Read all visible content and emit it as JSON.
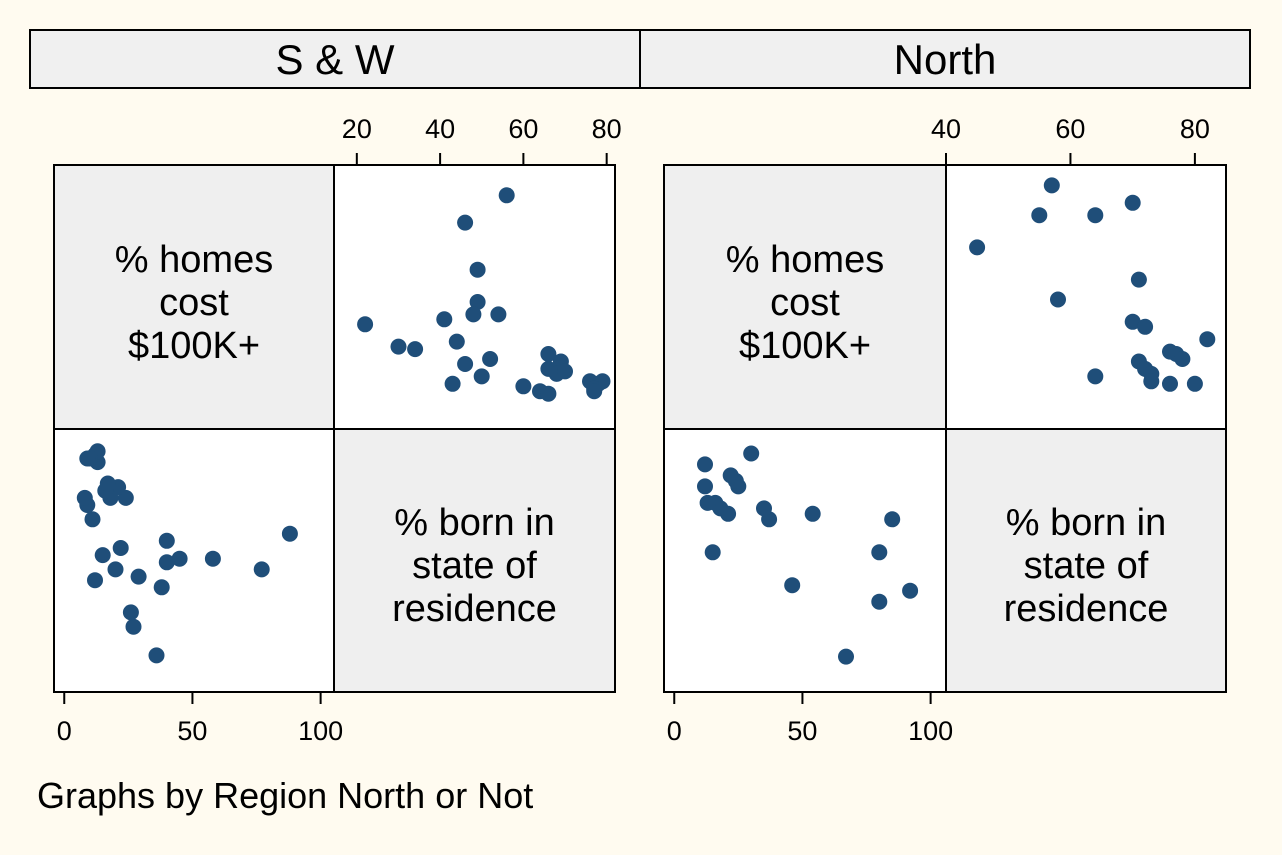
{
  "note": "Graphs by Region North or Not",
  "colors": {
    "marker": "#1f4e79",
    "background": "#fffbf0",
    "strip": "#f0f0f0",
    "diagonal": "#efefef"
  },
  "chart_data": [
    {
      "type": "scatter",
      "panel": "S & W",
      "variables": [
        {
          "key": "homes",
          "label_lines": [
            "% homes",
            "cost",
            "$100K+"
          ]
        },
        {
          "key": "born",
          "label_lines": [
            "% born in",
            "state of",
            "residence"
          ]
        }
      ],
      "top_axis": {
        "variable": "born",
        "range": [
          15,
          82
        ],
        "ticks": [
          20,
          40,
          60,
          80
        ]
      },
      "bottom_axis": {
        "variable": "homes",
        "range": [
          -4,
          106
        ],
        "ticks": [
          0,
          50,
          100
        ]
      },
      "homes_range": [
        -3,
        97
      ],
      "born_range": [
        14,
        83
      ],
      "points": [
        {
          "born": 56,
          "homes": 88
        },
        {
          "born": 46,
          "homes": 77
        },
        {
          "born": 49,
          "homes": 58
        },
        {
          "born": 49,
          "homes": 45
        },
        {
          "born": 48,
          "homes": 40
        },
        {
          "born": 54,
          "homes": 40
        },
        {
          "born": 22,
          "homes": 36
        },
        {
          "born": 41,
          "homes": 38
        },
        {
          "born": 44,
          "homes": 29
        },
        {
          "born": 30,
          "homes": 27
        },
        {
          "born": 34,
          "homes": 26
        },
        {
          "born": 52,
          "homes": 22
        },
        {
          "born": 46,
          "homes": 20
        },
        {
          "born": 66,
          "homes": 24
        },
        {
          "born": 69,
          "homes": 21
        },
        {
          "born": 66,
          "homes": 18
        },
        {
          "born": 68,
          "homes": 16
        },
        {
          "born": 70,
          "homes": 17
        },
        {
          "born": 50,
          "homes": 15
        },
        {
          "born": 43,
          "homes": 12
        },
        {
          "born": 60,
          "homes": 11
        },
        {
          "born": 64,
          "homes": 9
        },
        {
          "born": 66,
          "homes": 8
        },
        {
          "born": 76,
          "homes": 13
        },
        {
          "born": 78,
          "homes": 12
        },
        {
          "born": 79,
          "homes": 13
        },
        {
          "born": 77,
          "homes": 10
        },
        {
          "born": 77,
          "homes": 9
        }
      ]
    },
    {
      "type": "scatter",
      "panel": "North",
      "variables": [
        {
          "key": "homes",
          "label_lines": [
            "% homes",
            "cost",
            "$100K+"
          ]
        },
        {
          "key": "born",
          "label_lines": [
            "% born in",
            "state of",
            "residence"
          ]
        }
      ],
      "top_axis": {
        "variable": "born",
        "range": [
          40,
          85
        ],
        "ticks": [
          40,
          60,
          80
        ]
      },
      "bottom_axis": {
        "variable": "homes",
        "range": [
          -4,
          106
        ],
        "ticks": [
          0,
          50,
          100
        ]
      },
      "homes_range": [
        -3,
        97
      ],
      "born_range": [
        40,
        85
      ],
      "points": [
        {
          "born": 57,
          "homes": 92
        },
        {
          "born": 70,
          "homes": 85
        },
        {
          "born": 55,
          "homes": 80
        },
        {
          "born": 64,
          "homes": 80
        },
        {
          "born": 45,
          "homes": 67
        },
        {
          "born": 71,
          "homes": 54
        },
        {
          "born": 58,
          "homes": 46
        },
        {
          "born": 70,
          "homes": 37
        },
        {
          "born": 72,
          "homes": 35
        },
        {
          "born": 82,
          "homes": 30
        },
        {
          "born": 76,
          "homes": 25
        },
        {
          "born": 77,
          "homes": 24
        },
        {
          "born": 78,
          "homes": 22
        },
        {
          "born": 71,
          "homes": 21
        },
        {
          "born": 72,
          "homes": 18
        },
        {
          "born": 73,
          "homes": 16
        },
        {
          "born": 64,
          "homes": 15
        },
        {
          "born": 73,
          "homes": 13
        },
        {
          "born": 76,
          "homes": 12
        },
        {
          "born": 80,
          "homes": 12
        }
      ]
    }
  ]
}
